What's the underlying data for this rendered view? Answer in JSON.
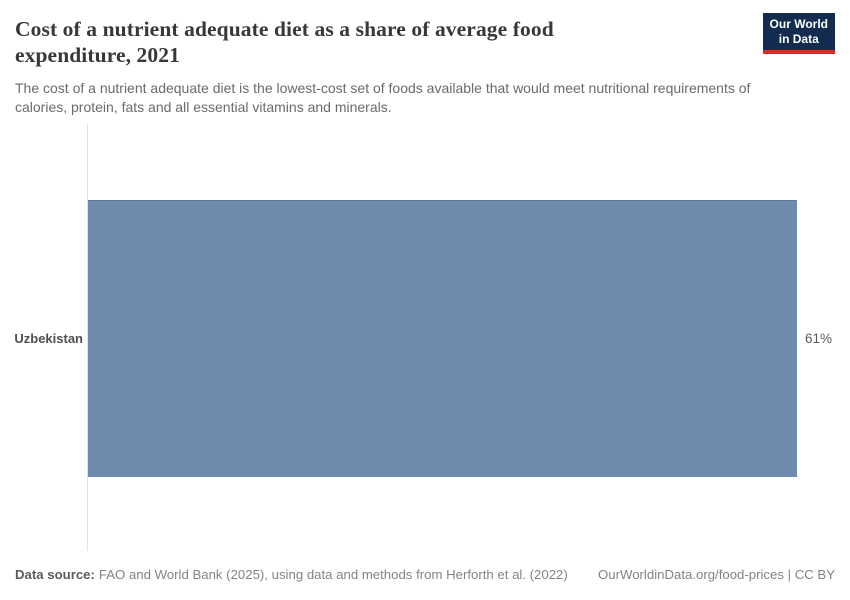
{
  "header": {
    "title": "Cost of a nutrient adequate diet as a share of average food expenditure, 2021",
    "subtitle": "The cost of a nutrient adequate diet is the lowest-cost set of foods available that would meet nutritional requirements of calories, protein, fats and all essential vitamins and minerals.",
    "logo": {
      "line1": "Our World",
      "line2": "in Data",
      "background_color": "#122b4e",
      "accent_color": "#dc2a27"
    }
  },
  "chart_data": {
    "type": "bar",
    "orientation": "horizontal",
    "title": "Cost of a nutrient adequate diet as a share of average food expenditure, 2021",
    "categories": [
      "Uzbekistan"
    ],
    "values": [
      61
    ],
    "value_labels": [
      "61%"
    ],
    "xlabel": "",
    "ylabel": "",
    "xlim": [
      0,
      61
    ],
    "grid": false,
    "legend": false,
    "bar_color": "#6e8aad"
  },
  "footer": {
    "data_source_label": "Data source:",
    "data_source_text": "FAO and World Bank (2025), using data and methods from Herforth et al. (2022)",
    "link_text": "OurWorldinData.org/food-prices | CC BY"
  }
}
